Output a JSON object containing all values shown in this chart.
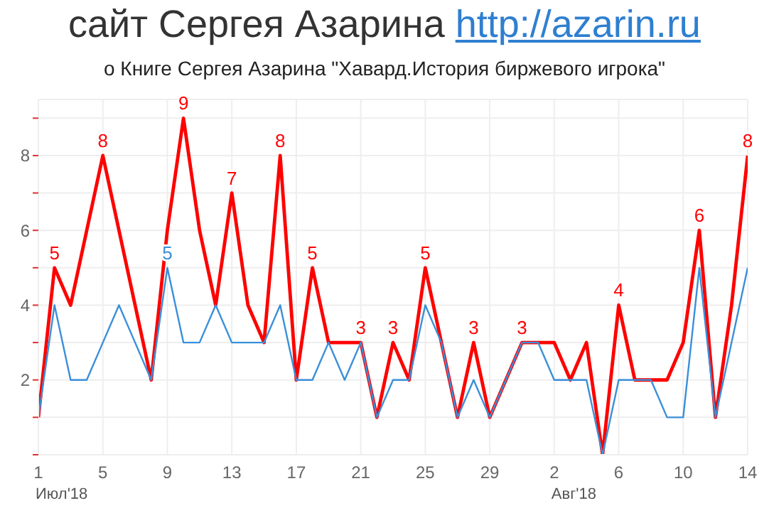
{
  "chart_data": {
    "type": "line",
    "title": "сайт Сергея Азарина http://azarin.ru",
    "subtitle": "о Книге Сергея Азарина \"Хавард.История биржевого игрока\"",
    "annotations": [
      "Июл'18",
      "Авг'18"
    ],
    "x": [
      "2018-07-01",
      "2018-07-02",
      "2018-07-03",
      "2018-07-04",
      "2018-07-05",
      "2018-07-06",
      "2018-07-07",
      "2018-07-08",
      "2018-07-09",
      "2018-07-10",
      "2018-07-11",
      "2018-07-12",
      "2018-07-13",
      "2018-07-14",
      "2018-07-15",
      "2018-07-16",
      "2018-07-17",
      "2018-07-18",
      "2018-07-19",
      "2018-07-20",
      "2018-07-21",
      "2018-07-22",
      "2018-07-23",
      "2018-07-24",
      "2018-07-25",
      "2018-07-26",
      "2018-07-27",
      "2018-07-28",
      "2018-07-29",
      "2018-07-30",
      "2018-07-31",
      "2018-08-01",
      "2018-08-02",
      "2018-08-03",
      "2018-08-04",
      "2018-08-05",
      "2018-08-06",
      "2018-08-07",
      "2018-08-08",
      "2018-08-09",
      "2018-08-10",
      "2018-08-11",
      "2018-08-12",
      "2018-08-13",
      "2018-08-14"
    ],
    "series": [
      {
        "color": "#ff0000",
        "values": [
          1,
          5,
          4,
          6,
          8,
          6,
          4,
          2,
          6,
          9,
          6,
          4,
          7,
          4,
          3,
          8,
          2,
          5,
          3,
          3,
          3,
          1,
          3,
          2,
          5,
          3,
          1,
          3,
          1,
          2,
          3,
          3,
          3,
          2,
          3,
          0,
          4,
          2,
          2,
          2,
          3,
          6,
          1,
          4,
          8
        ],
        "value_labels": [
          null,
          "5",
          null,
          null,
          "8",
          null,
          null,
          null,
          null,
          "9",
          null,
          null,
          "7",
          null,
          null,
          "8",
          null,
          "5",
          null,
          null,
          "3",
          null,
          "3",
          null,
          "5",
          null,
          null,
          "3",
          null,
          null,
          "3",
          null,
          null,
          null,
          null,
          null,
          "4",
          null,
          null,
          null,
          null,
          "6",
          null,
          null,
          "8"
        ]
      },
      {
        "color": "#3a8fd9",
        "values": [
          1,
          4,
          2,
          2,
          3,
          4,
          3,
          2,
          5,
          3,
          3,
          4,
          3,
          3,
          3,
          4,
          2,
          2,
          3,
          2,
          3,
          1,
          2,
          2,
          4,
          3,
          1,
          2,
          1,
          2,
          3,
          3,
          2,
          2,
          2,
          0,
          2,
          2,
          2,
          1,
          1,
          5,
          1,
          3,
          5
        ],
        "value_labels": [
          null,
          null,
          null,
          null,
          null,
          null,
          null,
          null,
          "5",
          null,
          null,
          null,
          null,
          null,
          null,
          null,
          null,
          null,
          null,
          null,
          null,
          null,
          null,
          null,
          null,
          null,
          null,
          null,
          null,
          null,
          null,
          null,
          null,
          null,
          null,
          null,
          null,
          null,
          null,
          null,
          null,
          null,
          null,
          null,
          null
        ]
      }
    ],
    "xlim": [
      "2018-07-01",
      "2018-08-14"
    ],
    "xticks": [
      {
        "value": "2018-07-01",
        "label": "1"
      },
      {
        "value": "2018-07-05",
        "label": "5"
      },
      {
        "value": "2018-07-09",
        "label": "9"
      },
      {
        "value": "2018-07-13",
        "label": "13"
      },
      {
        "value": "2018-07-17",
        "label": "17"
      },
      {
        "value": "2018-07-21",
        "label": "21"
      },
      {
        "value": "2018-07-25",
        "label": "25"
      },
      {
        "value": "2018-07-29",
        "label": "29"
      },
      {
        "value": "2018-08-02",
        "label": "2"
      },
      {
        "value": "2018-08-06",
        "label": "6"
      },
      {
        "value": "2018-08-10",
        "label": "10"
      },
      {
        "value": "2018-08-14",
        "label": "14"
      }
    ],
    "ylim": [
      0,
      9.5
    ],
    "yticks": [
      {
        "value": 0,
        "label": null
      },
      {
        "value": 1,
        "label": null
      },
      2,
      {
        "value": 3,
        "label": null
      },
      4,
      {
        "value": 5,
        "label": null
      },
      6,
      {
        "value": 7,
        "label": null
      },
      8,
      {
        "value": 9,
        "label": null
      }
    ],
    "grid": true,
    "marker": "none",
    "line_style": "solid"
  }
}
